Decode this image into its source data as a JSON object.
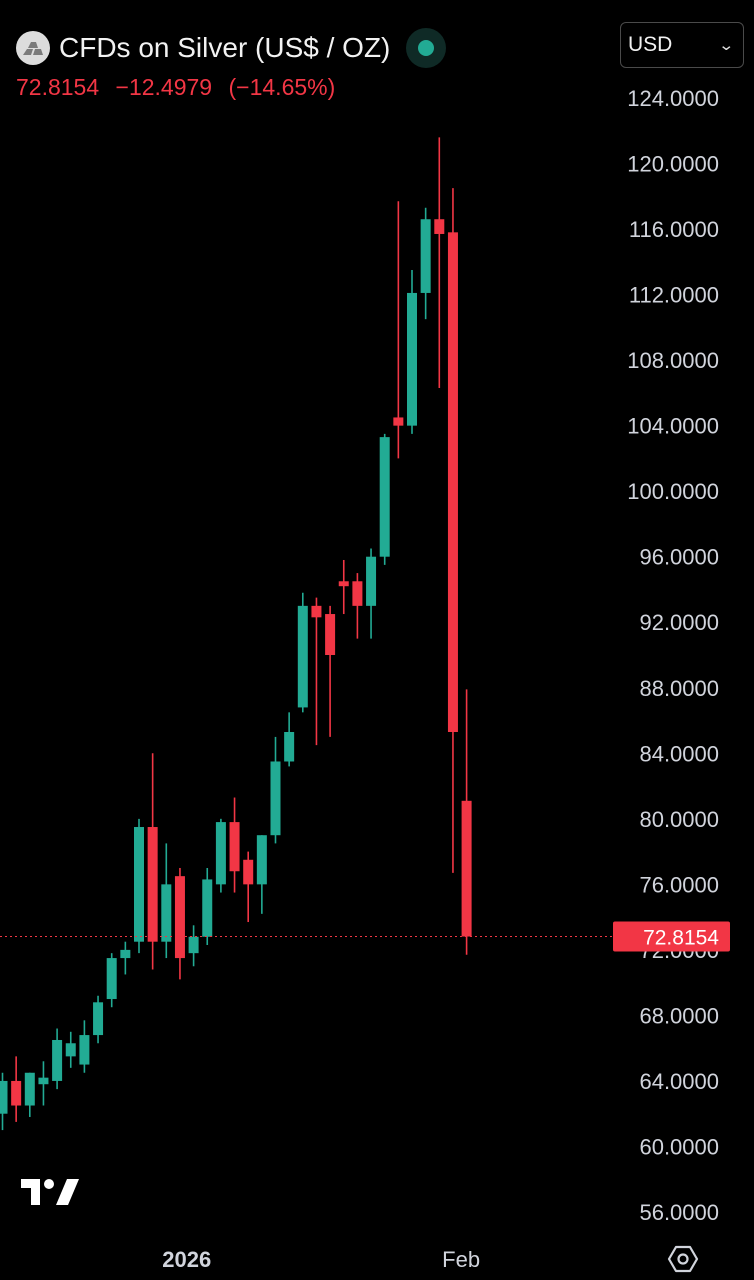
{
  "header": {
    "title": "CFDs on Silver (US$ / OZ)",
    "symbol_icon": "silver-bars-icon",
    "status_icon": "market-status-dot",
    "status_color": "#22ab94"
  },
  "quote": {
    "last": "72.8154",
    "change": "−12.4979",
    "change_pct": "(−14.65%)",
    "color": "#f23645"
  },
  "currency_select": {
    "value": "USD",
    "icon": "chevron-down-icon"
  },
  "price_label": "72.8154",
  "colors": {
    "up": "#22ab94",
    "down": "#f23645",
    "background": "#000000",
    "axis_text": "#d1d4dc"
  },
  "chart_data": {
    "type": "candlestick",
    "timeframe": "weekly",
    "ylim": [
      54,
      126
    ],
    "y_ticks": [
      124,
      120,
      116,
      112,
      108,
      104,
      100,
      96,
      92,
      88,
      84,
      80,
      76,
      72,
      68,
      64,
      60,
      56
    ],
    "y_tick_labels": [
      "124.0000",
      "120.0000",
      "116.0000",
      "112.0000",
      "108.0000",
      "104.0000",
      "100.0000",
      "96.0000",
      "92.0000",
      "88.0000",
      "84.0000",
      "80.0000",
      "76.0000",
      "72.0000",
      "68.0000",
      "64.0000",
      "60.0000",
      "56.0000"
    ],
    "x_labels": [
      {
        "label": "2026",
        "index": 13.5,
        "bold": true
      },
      {
        "label": "Feb",
        "index": 33.6,
        "bold": false
      }
    ],
    "last_price": 72.8154,
    "grid": false,
    "candles": [
      {
        "o": 62.0,
        "h": 64.5,
        "l": 61.0,
        "c": 64.0
      },
      {
        "o": 64.0,
        "h": 65.5,
        "l": 61.5,
        "c": 62.5
      },
      {
        "o": 62.5,
        "h": 64.5,
        "l": 61.8,
        "c": 64.5
      },
      {
        "o": 63.8,
        "h": 65.2,
        "l": 62.5,
        "c": 64.2
      },
      {
        "o": 64.0,
        "h": 67.2,
        "l": 63.5,
        "c": 66.5
      },
      {
        "o": 65.5,
        "h": 67.0,
        "l": 64.8,
        "c": 66.3
      },
      {
        "o": 65.0,
        "h": 67.7,
        "l": 64.5,
        "c": 66.8
      },
      {
        "o": 66.8,
        "h": 69.2,
        "l": 66.3,
        "c": 68.8
      },
      {
        "o": 69.0,
        "h": 71.8,
        "l": 68.5,
        "c": 71.5
      },
      {
        "o": 71.5,
        "h": 72.5,
        "l": 70.5,
        "c": 72.0
      },
      {
        "o": 72.5,
        "h": 80.0,
        "l": 71.8,
        "c": 79.5
      },
      {
        "o": 79.5,
        "h": 84.0,
        "l": 70.8,
        "c": 72.5
      },
      {
        "o": 72.5,
        "h": 78.5,
        "l": 71.5,
        "c": 76.0
      },
      {
        "o": 76.5,
        "h": 77.0,
        "l": 70.2,
        "c": 71.5
      },
      {
        "o": 71.8,
        "h": 73.5,
        "l": 71.0,
        "c": 72.8
      },
      {
        "o": 72.8,
        "h": 77.0,
        "l": 72.3,
        "c": 76.3
      },
      {
        "o": 76.0,
        "h": 80.0,
        "l": 75.5,
        "c": 79.8
      },
      {
        "o": 79.8,
        "h": 81.3,
        "l": 75.5,
        "c": 76.8
      },
      {
        "o": 77.5,
        "h": 78.0,
        "l": 73.7,
        "c": 76.0
      },
      {
        "o": 76.0,
        "h": 79.0,
        "l": 74.2,
        "c": 79.0
      },
      {
        "o": 79.0,
        "h": 85.0,
        "l": 78.5,
        "c": 83.5
      },
      {
        "o": 83.5,
        "h": 86.5,
        "l": 83.2,
        "c": 85.3
      },
      {
        "o": 86.8,
        "h": 93.8,
        "l": 86.5,
        "c": 93.0
      },
      {
        "o": 93.0,
        "h": 93.5,
        "l": 84.5,
        "c": 92.3
      },
      {
        "o": 92.5,
        "h": 93.0,
        "l": 85.0,
        "c": 90.0
      },
      {
        "o": 94.5,
        "h": 95.8,
        "l": 92.5,
        "c": 94.2
      },
      {
        "o": 94.5,
        "h": 95.0,
        "l": 91.0,
        "c": 93.0
      },
      {
        "o": 93.0,
        "h": 96.5,
        "l": 91.0,
        "c": 96.0
      },
      {
        "o": 96.0,
        "h": 103.5,
        "l": 95.5,
        "c": 103.3
      },
      {
        "o": 104.5,
        "h": 117.7,
        "l": 102.0,
        "c": 104.0
      },
      {
        "o": 104.0,
        "h": 113.5,
        "l": 103.5,
        "c": 112.1
      },
      {
        "o": 112.1,
        "h": 117.3,
        "l": 110.5,
        "c": 116.6
      },
      {
        "o": 116.6,
        "h": 121.6,
        "l": 106.3,
        "c": 115.7
      },
      {
        "o": 115.8,
        "h": 118.5,
        "l": 76.7,
        "c": 85.3
      },
      {
        "o": 81.1,
        "h": 87.9,
        "l": 71.7,
        "c": 72.8154
      }
    ]
  }
}
